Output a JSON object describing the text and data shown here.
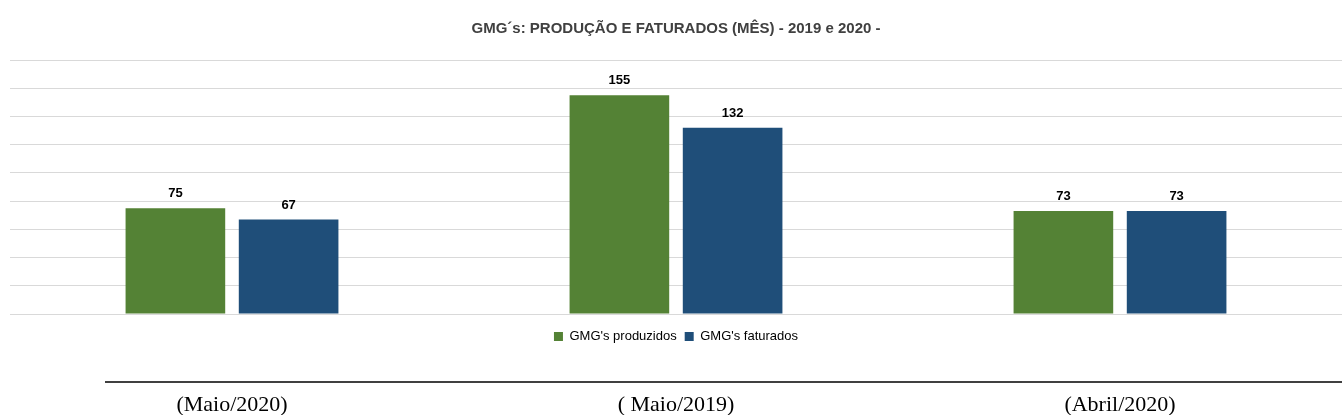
{
  "chart_data": {
    "type": "bar",
    "title": "GMG´s: PRODUÇÃO E FATURADOS (MÊS) - 2019 e 2020 -",
    "categories": [
      "(Maio/2020)",
      "( Maio/2019)",
      "(Abril/2020)"
    ],
    "series": [
      {
        "name": "GMG's produzidos",
        "color": "#548235",
        "values": [
          75,
          155,
          73
        ]
      },
      {
        "name": "GMG's faturados",
        "color": "#1f4e79",
        "values": [
          67,
          132,
          73
        ]
      }
    ],
    "ylim": [
      0,
      180
    ],
    "yticks": [
      {
        "value": 0,
        "label": null
      },
      {
        "value": 20,
        "label": null
      },
      {
        "value": 40,
        "label": null
      },
      {
        "value": 60,
        "label": null
      },
      {
        "value": 80,
        "label": null
      },
      {
        "value": 100,
        "label": null
      },
      {
        "value": 120,
        "label": null
      },
      {
        "value": 140,
        "label": null
      },
      {
        "value": 160,
        "label": null
      },
      {
        "value": 180,
        "label": null
      }
    ],
    "grid": "y",
    "legend": "bottom",
    "data_labels": true,
    "tick_labels": "x"
  }
}
